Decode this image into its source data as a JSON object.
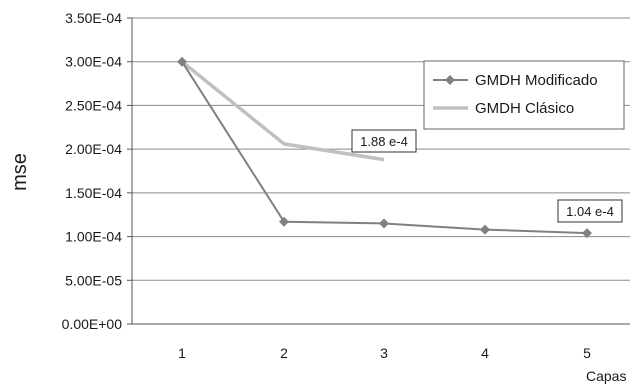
{
  "chart_data": {
    "type": "line",
    "title": "",
    "xlabel": "Capas",
    "ylabel": "mse",
    "x": [
      1,
      2,
      3,
      4,
      5
    ],
    "x_ticks": [
      "1",
      "2",
      "3",
      "4",
      "5"
    ],
    "ylim": [
      0,
      0.00035
    ],
    "y_ticks": [
      {
        "value": 0,
        "label": "0.00E+00"
      },
      {
        "value": 5e-05,
        "label": "5.00E-05"
      },
      {
        "value": 0.0001,
        "label": "1.00E-04"
      },
      {
        "value": 0.00015,
        "label": "1.50E-04"
      },
      {
        "value": 0.0002,
        "label": "2.00E-04"
      },
      {
        "value": 0.00025,
        "label": "2.50E-04"
      },
      {
        "value": 0.0003,
        "label": "3.00E-04"
      },
      {
        "value": 0.00035,
        "label": "3.50E-04"
      }
    ],
    "grid": true,
    "legend_position": "top-right",
    "series": [
      {
        "name": "GMDH Modificado",
        "color": "#808080",
        "marker": "diamond",
        "values": [
          0.0003,
          0.000117,
          0.000115,
          0.000108,
          0.000104
        ]
      },
      {
        "name": "GMDH Clásico",
        "color": "#c0c0c0",
        "marker": "none",
        "values": [
          0.0003,
          0.000206,
          0.000188,
          null,
          null
        ]
      }
    ],
    "annotations": [
      {
        "text": "1.88 e-4",
        "x": 3,
        "y": 0.000188
      },
      {
        "text": "1.04 e-4",
        "x": 5,
        "y": 0.000104
      }
    ]
  }
}
